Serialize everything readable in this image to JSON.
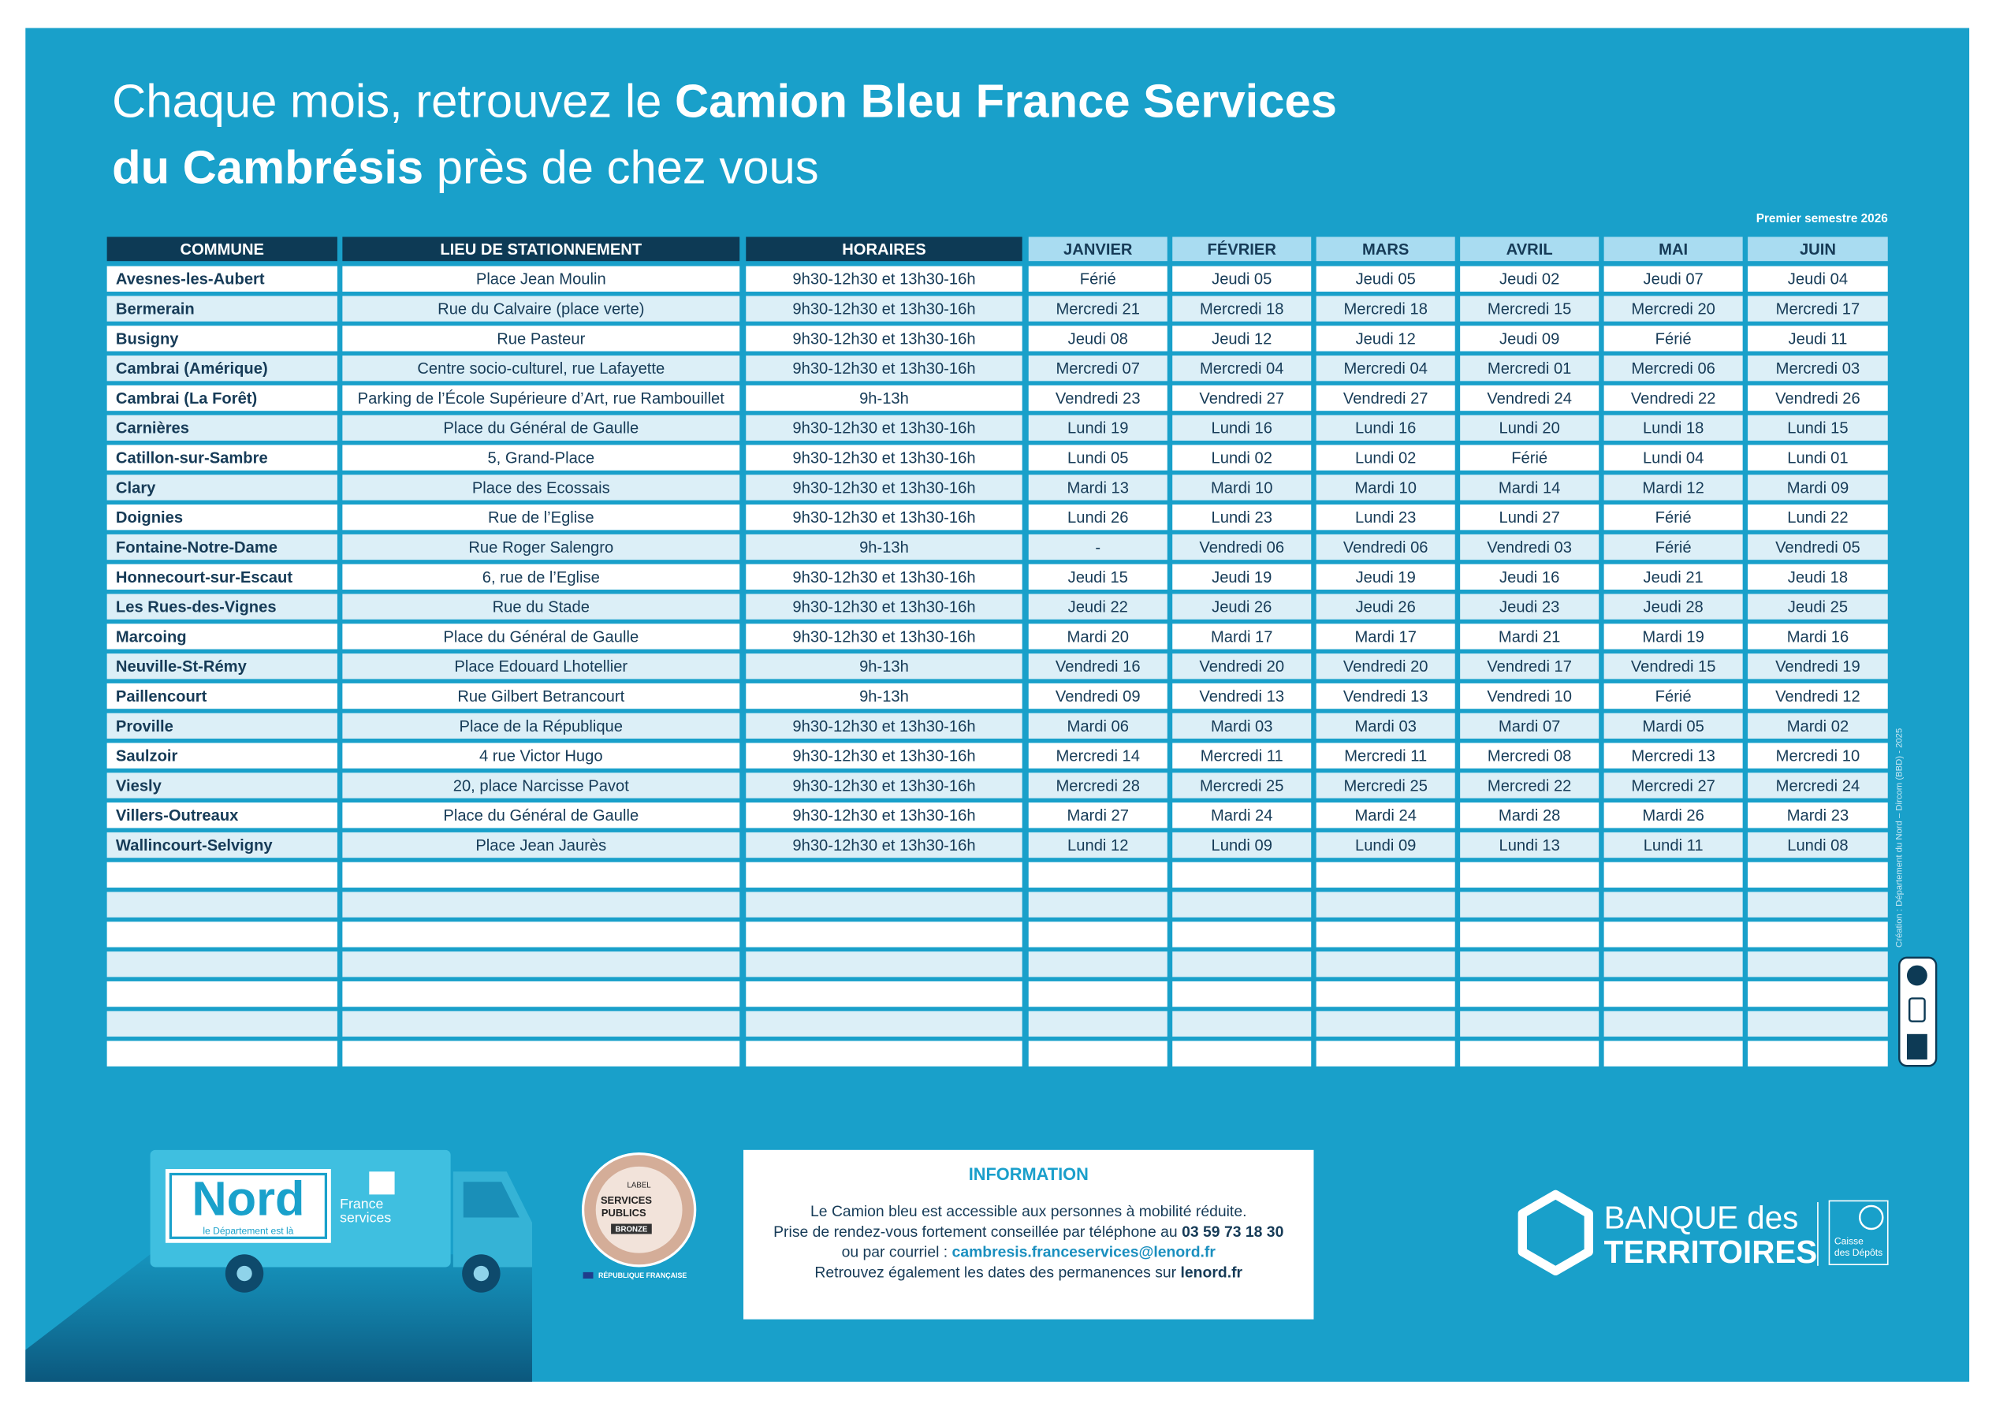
{
  "header": {
    "title_line_1": [
      "Chaque mois, retrouvez le ",
      "Camion Bleu France Services"
    ],
    "title_line_2": [
      "du Cambrésis",
      " près de chez vous"
    ],
    "period": "Premier semestre 2026"
  },
  "table": {
    "columns": [
      "COMMUNE",
      "LIEU DE STATIONNEMENT",
      "HORAIRES",
      "JANVIER",
      "FÉVRIER",
      "MARS",
      "AVRIL",
      "MAI",
      "JUIN"
    ],
    "rows": [
      [
        "Avesnes-les-Aubert",
        "Place Jean Moulin",
        "9h30-12h30 et 13h30-16h",
        "Férié",
        "Jeudi 05",
        "Jeudi 05",
        "Jeudi 02",
        "Jeudi 07",
        "Jeudi 04"
      ],
      [
        "Bermerain",
        "Rue du Calvaire (place verte)",
        "9h30-12h30 et 13h30-16h",
        "Mercredi 21",
        "Mercredi 18",
        "Mercredi 18",
        "Mercredi 15",
        "Mercredi 20",
        "Mercredi 17"
      ],
      [
        "Busigny",
        "Rue Pasteur",
        "9h30-12h30 et 13h30-16h",
        "Jeudi 08",
        "Jeudi 12",
        "Jeudi 12",
        "Jeudi 09",
        "Férié",
        "Jeudi 11"
      ],
      [
        "Cambrai (Amérique)",
        "Centre socio-culturel, rue Lafayette",
        "9h30-12h30 et 13h30-16h",
        "Mercredi 07",
        "Mercredi 04",
        "Mercredi 04",
        "Mercredi 01",
        "Mercredi 06",
        "Mercredi 03"
      ],
      [
        "Cambrai (La Forêt)",
        "Parking de l’École Supérieure d’Art, rue Rambouillet",
        "9h-13h",
        "Vendredi 23",
        "Vendredi 27",
        "Vendredi 27",
        "Vendredi 24",
        "Vendredi 22",
        "Vendredi 26"
      ],
      [
        "Carnières",
        "Place du Général de Gaulle",
        "9h30-12h30 et 13h30-16h",
        "Lundi 19",
        "Lundi 16",
        "Lundi 16",
        "Lundi 20",
        "Lundi 18",
        "Lundi 15"
      ],
      [
        "Catillon-sur-Sambre",
        "5, Grand-Place",
        "9h30-12h30 et 13h30-16h",
        "Lundi 05",
        "Lundi 02",
        "Lundi 02",
        "Férié",
        "Lundi 04",
        "Lundi 01"
      ],
      [
        "Clary",
        "Place des Ecossais",
        "9h30-12h30 et 13h30-16h",
        "Mardi 13",
        "Mardi 10",
        "Mardi 10",
        "Mardi 14",
        "Mardi 12",
        "Mardi 09"
      ],
      [
        "Doignies",
        "Rue de l’Eglise",
        "9h30-12h30 et 13h30-16h",
        "Lundi 26",
        "Lundi 23",
        "Lundi 23",
        "Lundi 27",
        "Férié",
        "Lundi 22"
      ],
      [
        "Fontaine-Notre-Dame",
        "Rue Roger Salengro",
        "9h-13h",
        "-",
        "Vendredi 06",
        "Vendredi 06",
        "Vendredi 03",
        "Férié",
        "Vendredi 05"
      ],
      [
        "Honnecourt-sur-Escaut",
        "6, rue de l’Eglise",
        "9h30-12h30 et 13h30-16h",
        "Jeudi 15",
        "Jeudi 19",
        "Jeudi 19",
        "Jeudi 16",
        "Jeudi 21",
        "Jeudi 18"
      ],
      [
        "Les Rues-des-Vignes",
        "Rue du Stade",
        "9h30-12h30 et 13h30-16h",
        "Jeudi 22",
        "Jeudi 26",
        "Jeudi 26",
        "Jeudi 23",
        "Jeudi 28",
        "Jeudi 25"
      ],
      [
        "Marcoing",
        "Place du Général de Gaulle",
        "9h30-12h30 et 13h30-16h",
        "Mardi 20",
        "Mardi 17",
        "Mardi 17",
        "Mardi 21",
        "Mardi 19",
        "Mardi 16"
      ],
      [
        "Neuville-St-Rémy",
        "Place Edouard Lhotellier",
        "9h-13h",
        "Vendredi 16",
        "Vendredi 20",
        "Vendredi 20",
        "Vendredi 17",
        "Vendredi 15",
        "Vendredi 19"
      ],
      [
        "Paillencourt",
        "Rue Gilbert Betrancourt",
        "9h-13h",
        "Vendredi 09",
        "Vendredi 13",
        "Vendredi 13",
        "Vendredi 10",
        "Férié",
        "Vendredi 12"
      ],
      [
        "Proville",
        "Place de la République",
        "9h30-12h30 et 13h30-16h",
        "Mardi 06",
        "Mardi 03",
        "Mardi 03",
        "Mardi 07",
        "Mardi 05",
        "Mardi 02"
      ],
      [
        "Saulzoir",
        "4 rue Victor Hugo",
        "9h30-12h30 et 13h30-16h",
        "Mercredi 14",
        "Mercredi 11",
        "Mercredi 11",
        "Mercredi 08",
        "Mercredi 13",
        "Mercredi 10"
      ],
      [
        "Viesly",
        "20, place Narcisse Pavot",
        "9h30-12h30 et 13h30-16h",
        "Mercredi 28",
        "Mercredi 25",
        "Mercredi 25",
        "Mercredi 22",
        "Mercredi 27",
        "Mercredi 24"
      ],
      [
        "Villers-Outreaux",
        "Place du Général de Gaulle",
        "9h30-12h30 et 13h30-16h",
        "Mardi 27",
        "Mardi 24",
        "Mardi 24",
        "Mardi 28",
        "Mardi 26",
        "Mardi 23"
      ],
      [
        "Wallincourt-Selvigny",
        "Place Jean Jaurès",
        "9h30-12h30 et 13h30-16h",
        "Lundi 12",
        "Lundi 09",
        "Lundi 09",
        "Lundi 13",
        "Lundi 11",
        "Lundi 08"
      ]
    ]
  },
  "information": {
    "title": "INFORMATION",
    "lines": [
      [
        "Le Camion bleu est accessible aux personnes à mobilité réduite."
      ],
      [
        "Prise de rendez-vous fortement conseillée par téléphone au ",
        "03 59 73 18 30"
      ],
      [
        "ou par courriel : ",
        "cambresis.franceservices@lenord.fr"
      ],
      [
        "Retrouvez également les dates des permanences sur ",
        "lenord.fr"
      ]
    ]
  },
  "truck": {
    "brand": "Nord",
    "tagline": "le Département est là",
    "service_line_1": "France",
    "service_line_2": "services"
  },
  "badge": {
    "label": "LABEL",
    "line_1": "SERVICES",
    "line_2": "PUBLICS",
    "level": "BRONZE",
    "republic": "RÉPUBLIQUE FRANÇAISE"
  },
  "partner": {
    "line_1": "BANQUE des",
    "line_2": "TERRITOIRES",
    "sub_1": "Caisse",
    "sub_2": "des Dépôts"
  },
  "credit": "Création : Département du Nord – Dircom (BBD) - 2025"
}
